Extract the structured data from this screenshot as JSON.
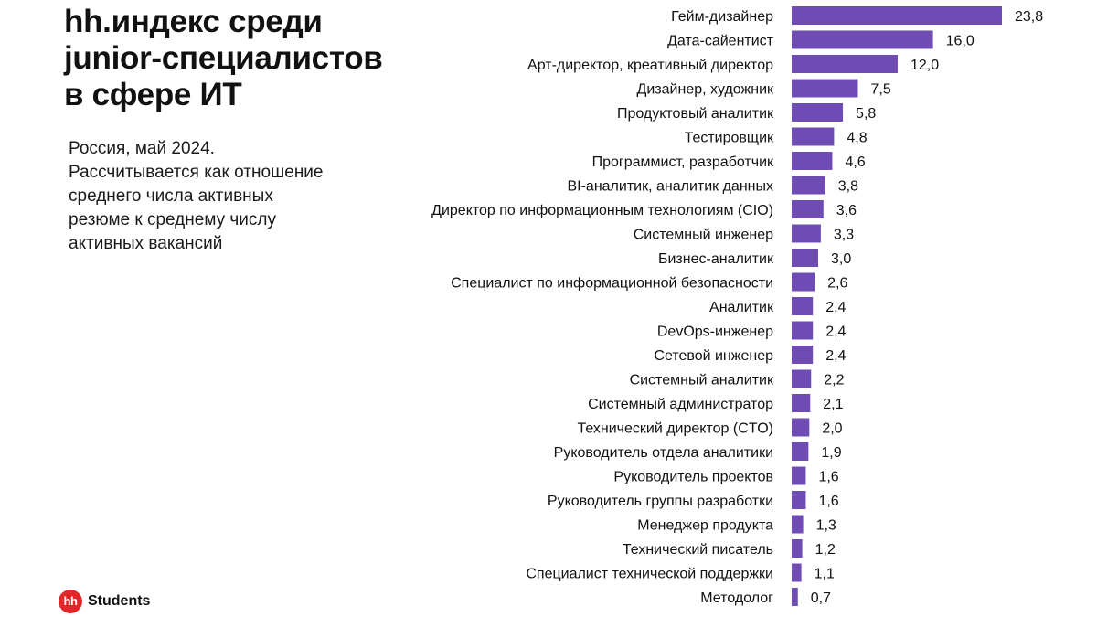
{
  "title_lines": [
    "hh.индекс среди",
    "junior-специалистов",
    "в сфере ИТ"
  ],
  "subtitle_lines": [
    "Россия, май 2024.",
    "Рассчитывается как отношение",
    "среднего числа активных",
    "резюме к среднему числу",
    "активных вакансий"
  ],
  "logo": {
    "badge": "hh",
    "text": "Students"
  },
  "colors": {
    "bar": "#6e4cb4",
    "text": "#111111",
    "logo_red": "#e3262a"
  },
  "chart_data": {
    "type": "bar",
    "orientation": "horizontal",
    "categories": [
      "Гейм-дизайнер",
      "Дата-сайентист",
      "Арт-директор, креативный директор",
      "Дизайнер, художник",
      "Продуктовый аналитик",
      "Тестировщик",
      "Программист, разработчик",
      "BI-аналитик, аналитик данных",
      "Директор по информационным технологиям (CIO)",
      "Системный инженер",
      "Бизнес-аналитик",
      "Специалист по информационной безопасности",
      "Аналитик",
      "DevOps-инженер",
      "Сетевой инженер",
      "Системный аналитик",
      "Системный администратор",
      "Технический директор (CTO)",
      "Руководитель отдела аналитики",
      "Руководитель проектов",
      "Руководитель группы разработки",
      "Менеджер продукта",
      "Технический писатель",
      "Специалист технической поддержки",
      "Методолог"
    ],
    "values": [
      23.8,
      16.0,
      12.0,
      7.5,
      5.8,
      4.8,
      4.6,
      3.8,
      3.6,
      3.3,
      3.0,
      2.6,
      2.4,
      2.4,
      2.4,
      2.2,
      2.1,
      2.0,
      1.9,
      1.6,
      1.6,
      1.3,
      1.2,
      1.1,
      0.7
    ],
    "value_labels": [
      "23,8",
      "16,0",
      "12,0",
      "7,5",
      "5,8",
      "4,8",
      "4,6",
      "3,8",
      "3,6",
      "3,3",
      "3,0",
      "2,6",
      "2,4",
      "2,4",
      "2,4",
      "2,2",
      "2,1",
      "2,0",
      "1,9",
      "1,6",
      "1,6",
      "1,3",
      "1,2",
      "1,1",
      "0,7"
    ],
    "xlim": [
      0,
      23.8
    ],
    "grid": false,
    "legend": "none"
  }
}
